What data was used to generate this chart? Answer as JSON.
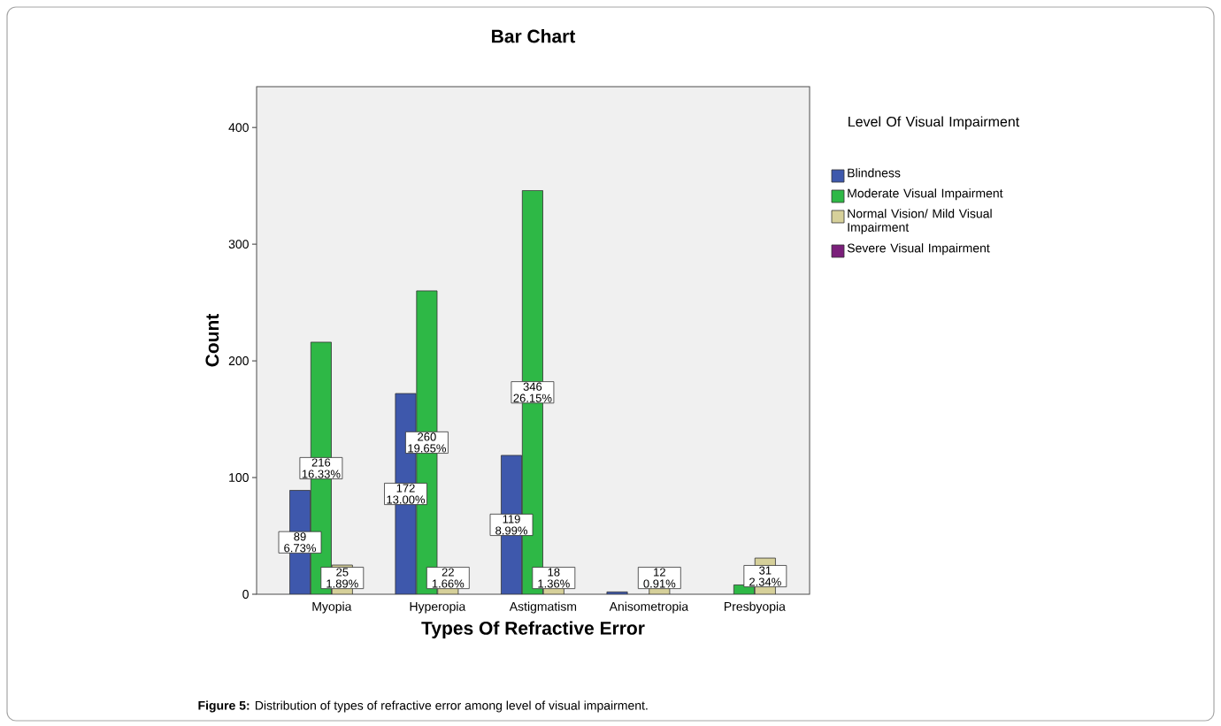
{
  "chart_data": {
    "type": "bar",
    "title": "Bar Chart",
    "xlabel": "Types Of Refractive Error",
    "ylabel": "Count",
    "legend_title": "Level Of Visual Impairment",
    "categories": [
      "Myopia",
      "Hyperopia",
      "Astigmatism",
      "Anisometropia",
      "Presbyopia"
    ],
    "series": [
      {
        "name": "Blindness",
        "color": "#3e58ac",
        "values": [
          89,
          172,
          119,
          2,
          null
        ],
        "value_labels": [
          "89 6.73%",
          "172 13.00%",
          "119 8.99%",
          null,
          null
        ]
      },
      {
        "name": "Moderate Visual Impairment",
        "color": "#2eb846",
        "values": [
          216,
          260,
          346,
          null,
          8
        ],
        "value_labels": [
          "216 16.33%",
          "260 19.65%",
          "346 26.15%",
          null,
          null
        ]
      },
      {
        "name": "Normal Vision/ Mild Visual Impairment",
        "color": "#d6d09a",
        "values": [
          25,
          22,
          18,
          12,
          31
        ],
        "value_labels": [
          "25 1.89%",
          "22 1.66%",
          "18 1.36%",
          "12 0.91%",
          "31 2.34%"
        ]
      },
      {
        "name": "Severe Visual Impairment",
        "color": "#7a1f7a",
        "values": [
          null,
          null,
          null,
          null,
          null
        ]
      }
    ],
    "ylim": [
      0,
      435
    ],
    "yticks": [
      0,
      100,
      200,
      300,
      400
    ],
    "grid": false,
    "legend": "right",
    "annotations": [
      "**Figure 5:** Distribution of types of refractive error among level of visual impairment."
    ]
  }
}
